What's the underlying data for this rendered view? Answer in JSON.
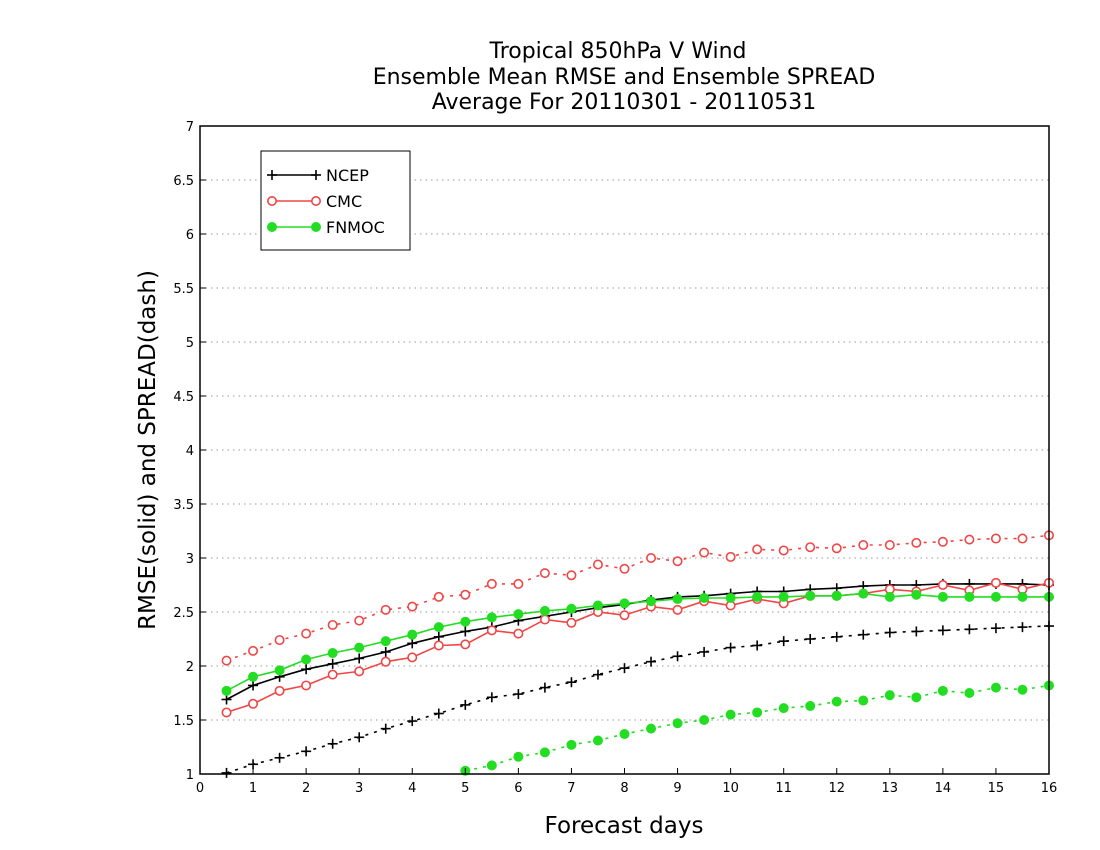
{
  "chart_data": {
    "type": "line",
    "title_lines": [
      "Tropical 850hPa V Wind",
      "Ensemble Mean RMSE and Ensemble SPREAD",
      "Average For 20110301 - 20110531"
    ],
    "xlabel": "Forecast days",
    "ylabel": "RMSE(solid) and SPREAD(dash)",
    "xlim": [
      0,
      16
    ],
    "ylim": [
      1,
      7
    ],
    "xticks": [
      "0",
      "1",
      "2",
      "3",
      "4",
      "5",
      "6",
      "7",
      "8",
      "9",
      "10",
      "11",
      "12",
      "13",
      "14",
      "15",
      "16"
    ],
    "yticks": [
      "1",
      "1.5",
      "2",
      "2.5",
      "3",
      "3.5",
      "4",
      "4.5",
      "5",
      "5.5",
      "6",
      "6.5",
      "7"
    ],
    "grid": "horizontal dotted",
    "legend_position": "top-left",
    "legend": [
      "NCEP",
      "CMC",
      "FNMOC"
    ],
    "x": [
      0.5,
      1,
      1.5,
      2,
      2.5,
      3,
      3.5,
      4,
      4.5,
      5,
      5.5,
      6,
      6.5,
      7,
      7.5,
      8,
      8.5,
      9,
      9.5,
      10,
      10.5,
      11,
      11.5,
      12,
      12.5,
      13,
      13.5,
      14,
      14.5,
      15,
      15.5,
      16
    ],
    "series": [
      {
        "name": "NCEP",
        "metric": "RMSE",
        "color": "#000000",
        "marker": "plus",
        "style": "solid",
        "values": [
          1.69,
          1.82,
          1.9,
          1.97,
          2.02,
          2.07,
          2.13,
          2.21,
          2.27,
          2.32,
          2.36,
          2.42,
          2.46,
          2.5,
          2.54,
          2.57,
          2.61,
          2.64,
          2.65,
          2.67,
          2.69,
          2.69,
          2.71,
          2.72,
          2.74,
          2.75,
          2.75,
          2.76,
          2.76,
          2.76,
          2.76,
          2.75
        ]
      },
      {
        "name": "CMC",
        "metric": "RMSE",
        "color": "#f04646",
        "marker": "open-circle",
        "style": "solid",
        "values": [
          1.57,
          1.65,
          1.77,
          1.82,
          1.92,
          1.95,
          2.04,
          2.08,
          2.19,
          2.2,
          2.33,
          2.3,
          2.43,
          2.4,
          2.5,
          2.47,
          2.55,
          2.52,
          2.6,
          2.56,
          2.62,
          2.58,
          2.65,
          2.65,
          2.67,
          2.71,
          2.69,
          2.75,
          2.7,
          2.77,
          2.71,
          2.77
        ]
      },
      {
        "name": "FNMOC",
        "metric": "RMSE",
        "color": "#22dd22",
        "marker": "filled-circle",
        "style": "solid",
        "values": [
          1.77,
          1.9,
          1.96,
          2.06,
          2.12,
          2.17,
          2.23,
          2.29,
          2.36,
          2.41,
          2.45,
          2.48,
          2.51,
          2.53,
          2.56,
          2.58,
          2.6,
          2.62,
          2.63,
          2.63,
          2.64,
          2.64,
          2.65,
          2.65,
          2.67,
          2.64,
          2.66,
          2.64,
          2.64,
          2.64,
          2.64,
          2.64
        ]
      },
      {
        "name": "NCEP",
        "metric": "SPREAD",
        "color": "#000000",
        "marker": "plus",
        "style": "dash",
        "values": [
          1.01,
          1.09,
          1.15,
          1.21,
          1.28,
          1.34,
          1.42,
          1.49,
          1.56,
          1.64,
          1.71,
          1.74,
          1.8,
          1.85,
          1.92,
          1.98,
          2.04,
          2.09,
          2.13,
          2.17,
          2.19,
          2.23,
          2.25,
          2.27,
          2.29,
          2.31,
          2.32,
          2.33,
          2.34,
          2.35,
          2.36,
          2.37
        ]
      },
      {
        "name": "CMC",
        "metric": "SPREAD",
        "color": "#f04646",
        "marker": "open-circle",
        "style": "dash",
        "values": [
          2.05,
          2.14,
          2.24,
          2.3,
          2.38,
          2.42,
          2.52,
          2.55,
          2.64,
          2.66,
          2.76,
          2.76,
          2.86,
          2.84,
          2.94,
          2.9,
          3.0,
          2.97,
          3.05,
          3.01,
          3.08,
          3.07,
          3.1,
          3.09,
          3.12,
          3.12,
          3.14,
          3.15,
          3.17,
          3.18,
          3.18,
          3.21
        ]
      },
      {
        "name": "FNMOC",
        "metric": "SPREAD",
        "color": "#22dd22",
        "marker": "filled-circle",
        "style": "dash",
        "values": [
          null,
          null,
          null,
          null,
          null,
          null,
          null,
          null,
          null,
          1.03,
          1.08,
          1.16,
          1.2,
          1.27,
          1.31,
          1.37,
          1.42,
          1.47,
          1.5,
          1.55,
          1.57,
          1.61,
          1.63,
          1.67,
          1.68,
          1.73,
          1.71,
          1.77,
          1.75,
          1.8,
          1.78,
          1.82
        ]
      }
    ]
  }
}
